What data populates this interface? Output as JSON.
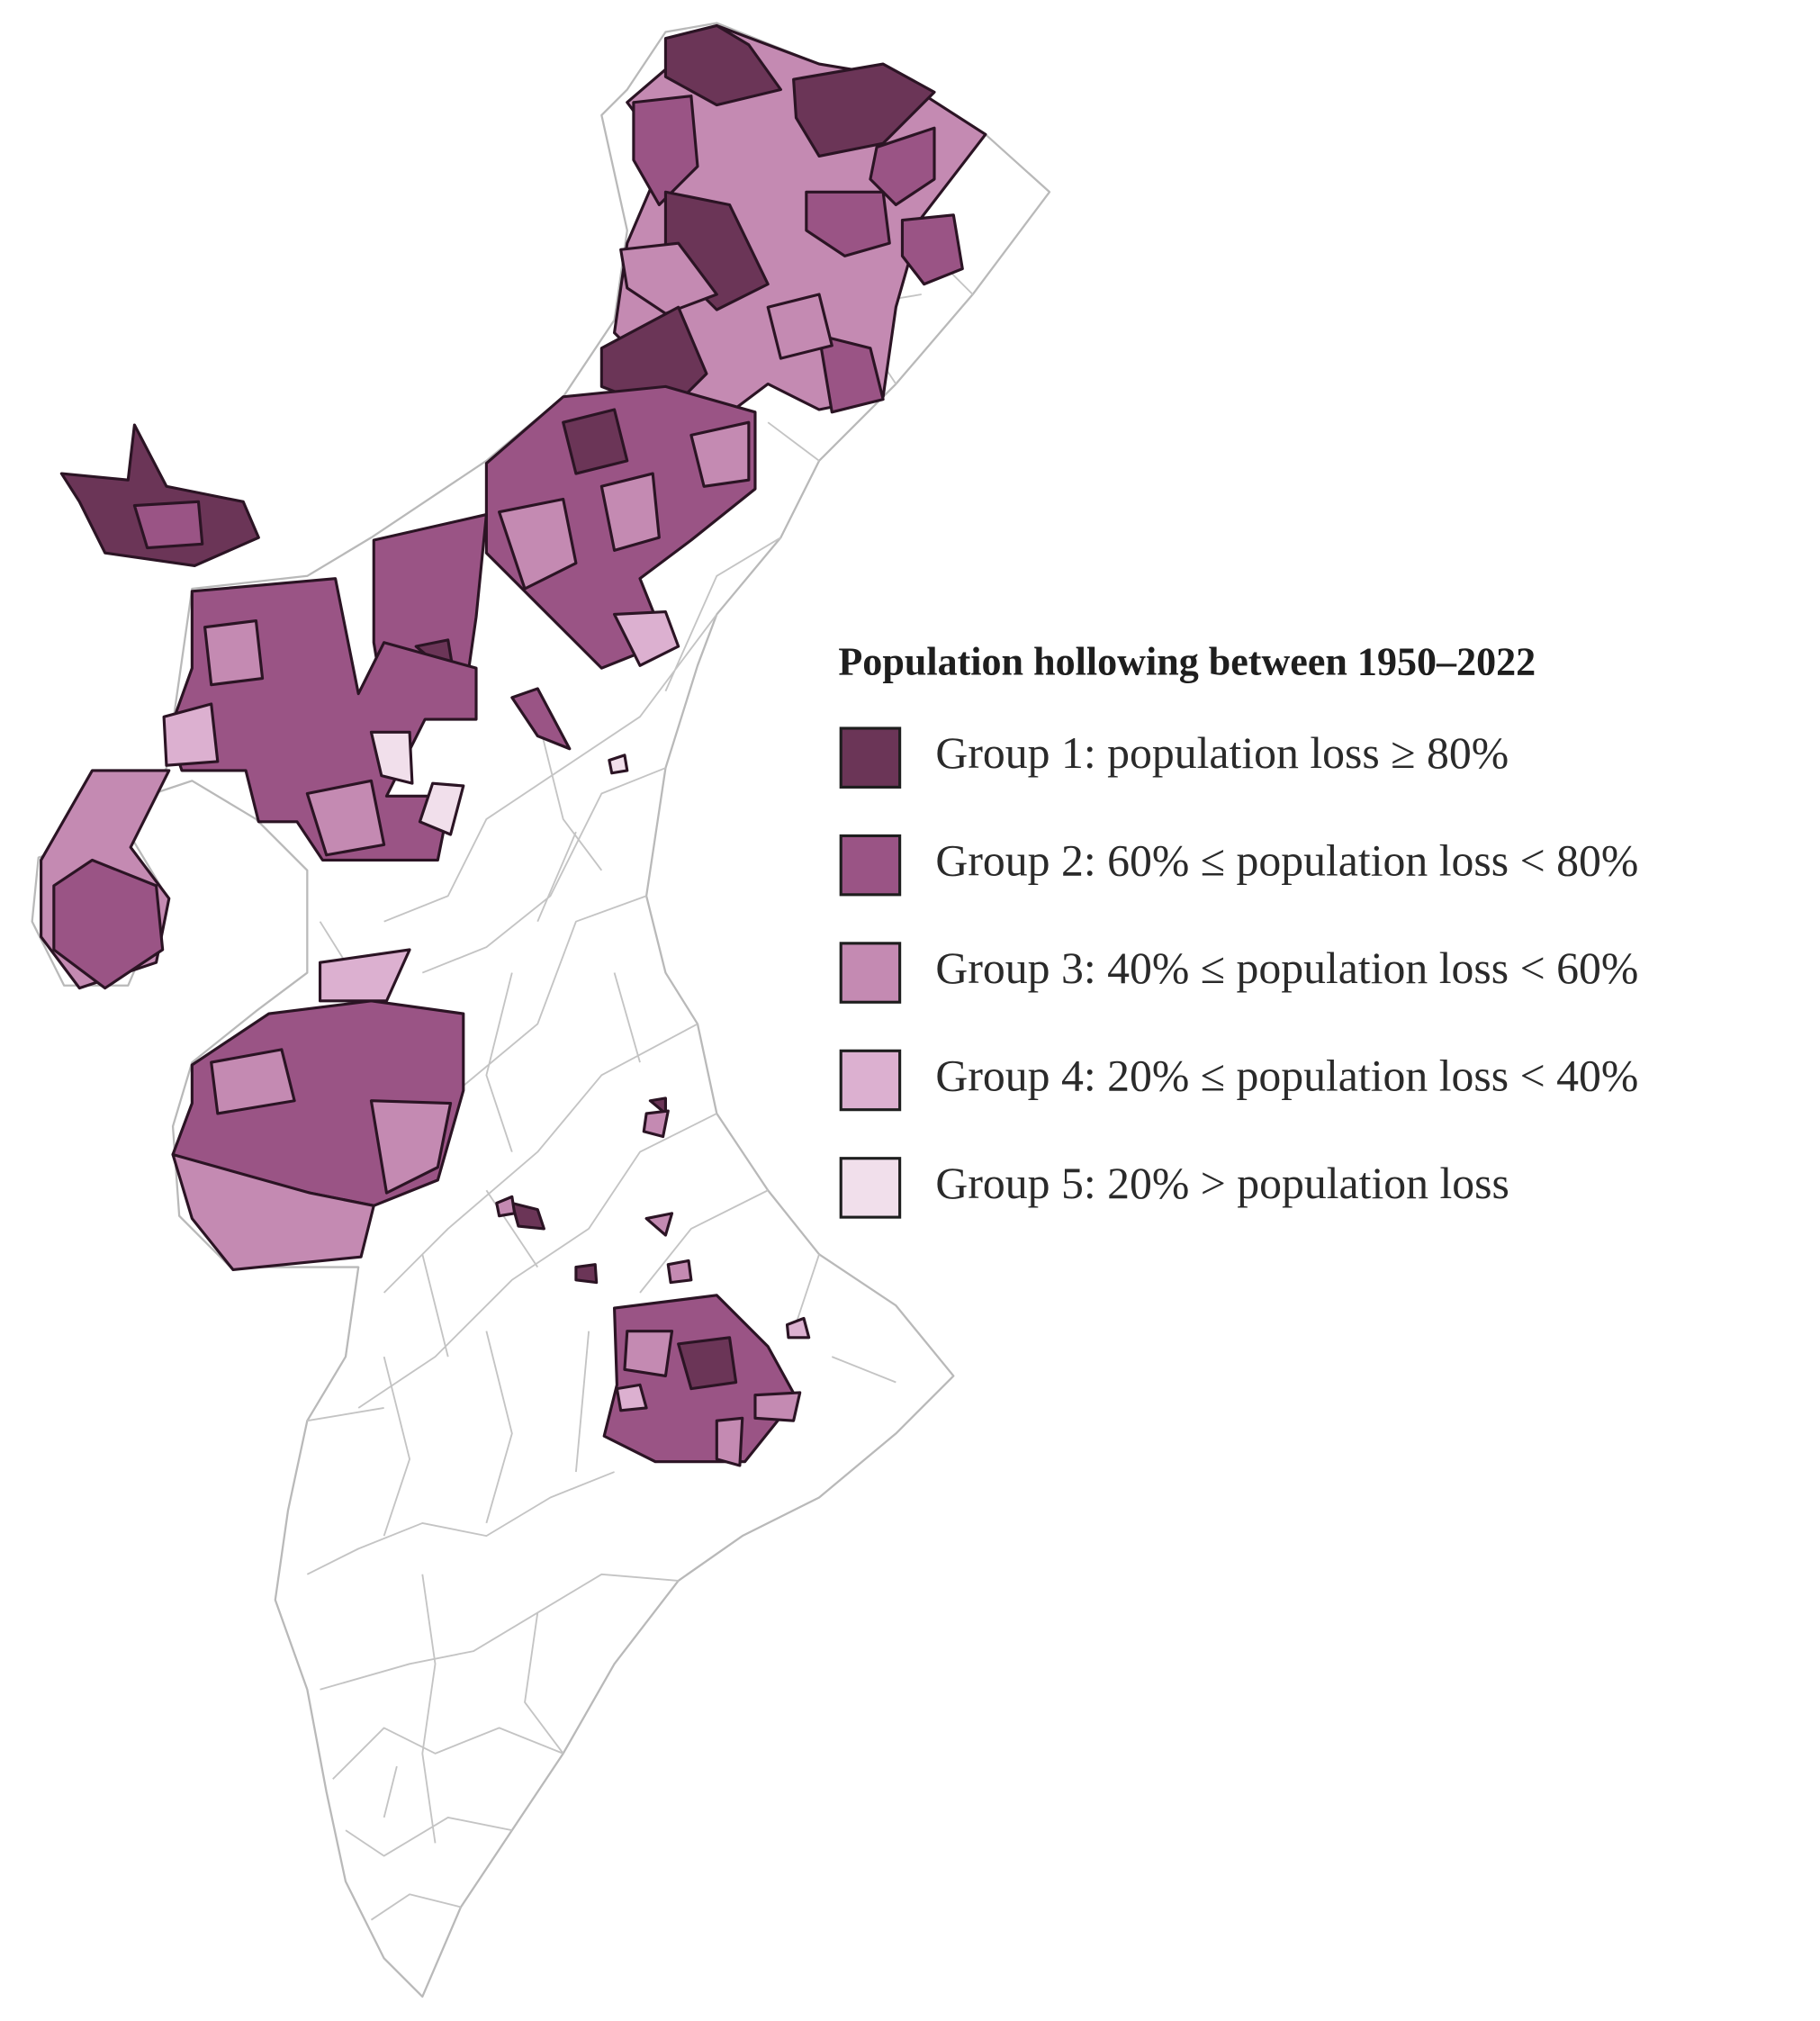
{
  "legend": {
    "title": "Population hollowing between 1950–2022",
    "items": [
      {
        "label": "Group 1: population loss ≥ 80%",
        "color": "#6b3557"
      },
      {
        "label": "Group 2: 60% ≤ population loss < 80%",
        "color": "#9a5485"
      },
      {
        "label": "Group 3: 40% ≤ population loss < 60%",
        "color": "#c48ab2"
      },
      {
        "label": "Group 4: 20% ≤ population loss < 40%",
        "color": "#dcb0d0"
      },
      {
        "label": "Group 5: 20% > population loss",
        "color": "#f1dfeb"
      }
    ]
  }
}
